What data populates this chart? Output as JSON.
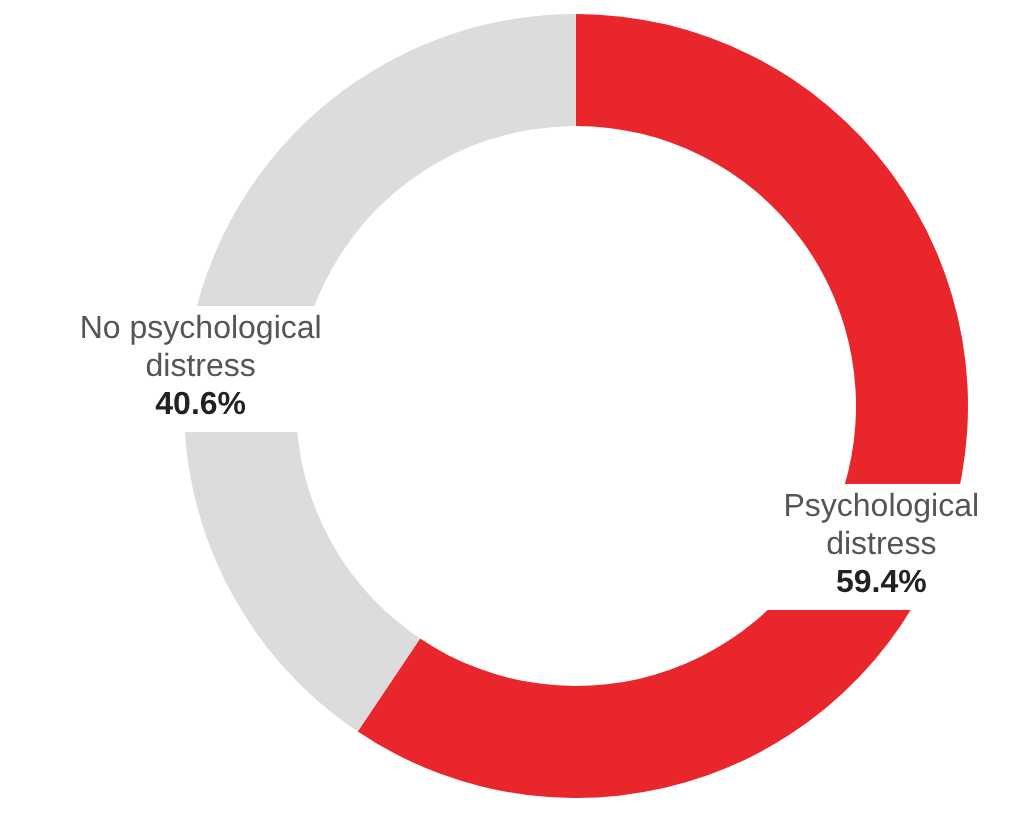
{
  "chart_data": {
    "type": "donut",
    "categories": [
      "Psychological distress",
      "No psychological distress"
    ],
    "values": [
      59.4,
      40.6
    ],
    "colors": [
      "#e8262b",
      "#dcdcdc"
    ],
    "value_labels": [
      "59.4%",
      "40.6%"
    ]
  }
}
